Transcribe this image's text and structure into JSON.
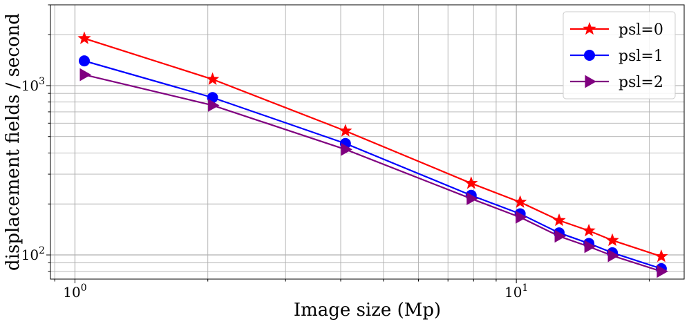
{
  "chart_data": {
    "type": "line",
    "xscale": "log",
    "yscale": "log",
    "xlabel": "Image size (Mp)",
    "ylabel": "displacement fields / second",
    "xlim": [
      0.88,
      24.0
    ],
    "ylim": [
      72,
      3000
    ],
    "grid": true,
    "legend_position": "top-right",
    "x_major_ticks": [
      {
        "value": 1,
        "label": "10",
        "exp": "0"
      },
      {
        "value": 10,
        "label": "10",
        "exp": "1"
      }
    ],
    "y_major_ticks": [
      {
        "value": 100,
        "label": "10",
        "exp": "2"
      },
      {
        "value": 1000,
        "label": "10",
        "exp": "3"
      }
    ],
    "x": [
      1.05,
      2.05,
      4.1,
      7.9,
      10.2,
      12.5,
      14.6,
      16.5,
      21.3
    ],
    "series": [
      {
        "name": "psl=0",
        "color": "#ff0000",
        "marker": "star",
        "values": [
          1900,
          1090,
          540,
          265,
          205,
          160,
          139,
          122,
          98
        ]
      },
      {
        "name": "psl=1",
        "color": "#0000ff",
        "marker": "circle",
        "values": [
          1400,
          850,
          455,
          225,
          175,
          135,
          117,
          103,
          83
        ]
      },
      {
        "name": "psl=2",
        "color": "#800080",
        "marker": "triangle-right",
        "values": [
          1160,
          765,
          420,
          215,
          167,
          129,
          112,
          99,
          80
        ]
      }
    ]
  }
}
